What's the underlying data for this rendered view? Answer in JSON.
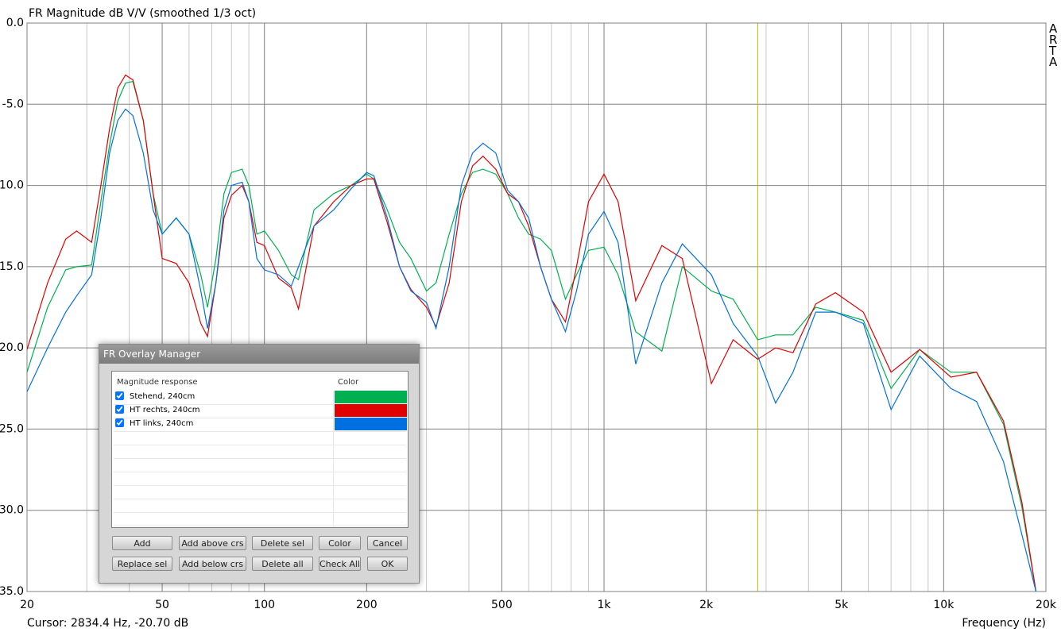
{
  "chart_data": {
    "type": "line",
    "title": "FR Magnitude dB V/V (smoothed 1/3 oct)",
    "x_label": "Frequency (Hz)",
    "cursor_text": "Cursor: 2834.4 Hz, -20.70 dB",
    "brand": "ARTA",
    "x_scale": "log",
    "grid": true,
    "xlim": [
      20,
      20000
    ],
    "ylim": [
      -35,
      0
    ],
    "xticks": [
      20,
      50,
      100,
      200,
      500,
      {
        "value": 1000,
        "label": "1k"
      },
      {
        "value": 2000,
        "label": "2k"
      },
      {
        "value": 5000,
        "label": "5k"
      },
      {
        "value": 10000,
        "label": "10k"
      },
      {
        "value": 20000,
        "label": "20k"
      }
    ],
    "xgrid_minor": [
      30,
      40,
      60,
      70,
      80,
      90,
      300,
      400,
      600,
      700,
      800,
      900,
      3000,
      4000,
      6000,
      7000,
      8000,
      9000
    ],
    "yticks": [
      {
        "value": 0,
        "label": "0.0"
      },
      {
        "value": -5,
        "label": "-5.0"
      },
      {
        "value": -10,
        "label": "-10.0"
      },
      {
        "value": -15,
        "label": "-15.0"
      },
      {
        "value": -20,
        "label": "-20.0"
      },
      {
        "value": -25,
        "label": "-25.0"
      },
      {
        "value": -30,
        "label": "-30.0"
      },
      {
        "value": -35,
        "label": "-35.0"
      }
    ],
    "cursor_line": {
      "x": 2834.4,
      "color": "#c8b400"
    },
    "x": [
      20,
      23,
      26,
      28,
      31,
      33,
      35,
      37,
      39,
      41,
      44,
      47,
      50,
      55,
      60,
      65,
      68,
      72,
      76,
      80,
      86,
      90,
      95,
      100,
      110,
      120,
      126,
      140,
      160,
      180,
      200,
      210,
      230,
      250,
      270,
      300,
      320,
      350,
      380,
      410,
      440,
      480,
      520,
      560,
      600,
      650,
      700,
      770,
      830,
      900,
      1000,
      1100,
      1240,
      1480,
      1700,
      2070,
      2400,
      2834,
      3200,
      3600,
      4200,
      4800,
      5800,
      7000,
      8500,
      10500,
      12500,
      15000,
      17000,
      18700
    ],
    "series": [
      {
        "name": "Stehend, 240cm",
        "color": "#00b050",
        "values": [
          -21.5,
          -17.5,
          -15.2,
          -15,
          -14.9,
          -11,
          -7.5,
          -4.8,
          -3.7,
          -3.6,
          -6,
          -10.5,
          -13,
          -12,
          -13,
          -15.5,
          -17.5,
          -14.5,
          -10.5,
          -9.2,
          -9,
          -10,
          -13,
          -12.8,
          -14,
          -15.5,
          -15.8,
          -11.5,
          -10.5,
          -10,
          -9.3,
          -9.6,
          -11.5,
          -13.5,
          -14.5,
          -16.5,
          -16,
          -13,
          -10.5,
          -9.2,
          -9,
          -9.3,
          -10.5,
          -12,
          -13,
          -13.3,
          -14,
          -17,
          -15.5,
          -14,
          -13.8,
          -15.5,
          -19,
          -20.2,
          -15,
          -16.5,
          -17,
          -19.5,
          -19.2,
          -19.2,
          -17.5,
          -17.8,
          -18.3,
          -22.5,
          -20.1,
          -21.5,
          -21.5,
          -24.7,
          -29.8,
          -35
        ]
      },
      {
        "name": "HT rechts, 240cm",
        "color": "#e00000",
        "values": [
          -20.1,
          -16,
          -13.3,
          -12.8,
          -13.5,
          -10,
          -6.5,
          -4,
          -3.2,
          -3.5,
          -6,
          -10.5,
          -14.5,
          -14.8,
          -16,
          -18.5,
          -19.3,
          -16,
          -12,
          -10.6,
          -10,
          -11,
          -13.5,
          -13.7,
          -15.7,
          -16.3,
          -17.6,
          -12.5,
          -11,
          -10,
          -9.6,
          -9.6,
          -12.3,
          -15,
          -16.4,
          -17.5,
          -18.7,
          -16,
          -11,
          -8.8,
          -8.2,
          -9,
          -10.5,
          -11,
          -12.5,
          -15,
          -17,
          -18.4,
          -15,
          -11,
          -9.3,
          -11,
          -17.1,
          -13.7,
          -14.5,
          -22.2,
          -19.5,
          -20.7,
          -20,
          -20.3,
          -17.3,
          -16.6,
          -17.8,
          -21.5,
          -20.1,
          -21.8,
          -21.5,
          -24.5,
          -29.5,
          -35
        ]
      },
      {
        "name": "HT links, 240cm",
        "color": "#0070e0",
        "values": [
          -22.7,
          -20,
          -17.8,
          -16.8,
          -15.5,
          -12,
          -8,
          -6,
          -5.3,
          -5.7,
          -8,
          -11.5,
          -13,
          -12,
          -13,
          -16.5,
          -18.8,
          -16,
          -11.5,
          -10,
          -9.8,
          -11,
          -14.5,
          -15.2,
          -15.5,
          -16.2,
          -15,
          -12.5,
          -11.5,
          -10.2,
          -9.2,
          -9.4,
          -12,
          -15,
          -16.5,
          -17.2,
          -18.8,
          -15,
          -10,
          -8,
          -7.4,
          -8,
          -10.3,
          -11,
          -12,
          -15,
          -17,
          -19,
          -16.5,
          -13,
          -11.6,
          -13.5,
          -21,
          -16,
          -13.6,
          -15.5,
          -18.5,
          -20.5,
          -23.4,
          -21.5,
          -17.8,
          -17.8,
          -18.5,
          -23.8,
          -20.5,
          -22.5,
          -23.3,
          -27,
          -31.5,
          -35
        ]
      }
    ]
  },
  "overlay_manager": {
    "title": "FR Overlay Manager",
    "columns": [
      "Magnitude response",
      "Color"
    ],
    "buttons": [
      "Add",
      "Add above crs",
      "Delete sel",
      "Color",
      "Cancel",
      "Replace sel",
      "Add below crs",
      "Delete all",
      "Check All",
      "OK"
    ]
  }
}
